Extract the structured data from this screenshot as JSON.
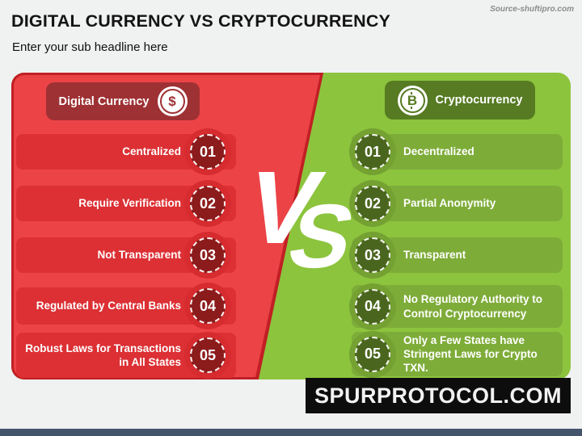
{
  "page": {
    "background": "#f0f1f1",
    "bottom_bar_color": "#44546a"
  },
  "header": {
    "title": "DIGITAL CURRENCY VS CRYPTOCURRENCY",
    "subtitle": "Enter your sub headline here",
    "source": "Source-shuftipro.com"
  },
  "versus": {
    "label": "VS",
    "v": "V",
    "s": "S"
  },
  "left": {
    "title": "Digital Currency",
    "icon": "dollar-coin-icon",
    "coin_symbol": "$",
    "colors": {
      "panel": "#ec4347",
      "band": "#dc3034",
      "badge": "#8c1b1b",
      "pill": "#9e3134",
      "border": "#c11f24"
    },
    "items": [
      {
        "num": "01",
        "label": "Centralized"
      },
      {
        "num": "02",
        "label": "Require Verification"
      },
      {
        "num": "03",
        "label": "Not Transparent"
      },
      {
        "num": "04",
        "label": "Regulated by Central Banks"
      },
      {
        "num": "05",
        "label": "Robust Laws for Transactions in All States"
      }
    ]
  },
  "right": {
    "title": "Cryptocurrency",
    "icon": "bitcoin-coin-icon",
    "coin_symbol": "B",
    "colors": {
      "panel": "#8cc43d",
      "band": "#7eac39",
      "badge": "#4a661e",
      "pill": "#567b23"
    },
    "items": [
      {
        "num": "01",
        "label": "Decentralized"
      },
      {
        "num": "02",
        "label": "Partial Anonymity"
      },
      {
        "num": "03",
        "label": "Transparent"
      },
      {
        "num": "04",
        "label": "No Regulatory Authority to Control Cryptocurrency"
      },
      {
        "num": "05",
        "label": "Only a Few States have Stringent Laws for Crypto TXN."
      }
    ]
  },
  "footer": {
    "brand": "SPURPROTOCOL.COM"
  }
}
